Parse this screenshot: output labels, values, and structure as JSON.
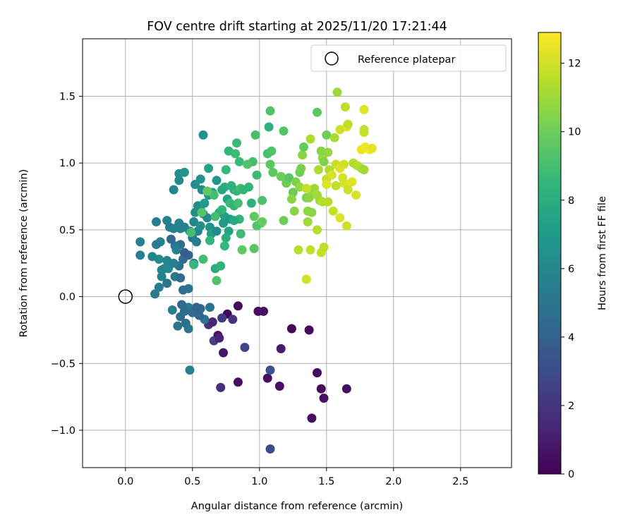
{
  "chart_data": {
    "type": "scatter",
    "title": "FOV centre drift starting at 2025/11/20 17:21:44",
    "xlabel": "Angular distance from reference (arcmin)",
    "ylabel": "Rotation from reference (arcmin)",
    "xlim": [
      -0.32,
      2.88
    ],
    "ylim": [
      -1.28,
      1.93
    ],
    "xticks": [
      0.0,
      0.5,
      1.0,
      1.5,
      2.0,
      2.5
    ],
    "xtick_labels": [
      "0.0",
      "0.5",
      "1.0",
      "1.5",
      "2.0",
      "2.5"
    ],
    "yticks": [
      -1.0,
      -0.5,
      0.0,
      0.5,
      1.0,
      1.5
    ],
    "ytick_labels": [
      "−1.0",
      "−0.5",
      "0.0",
      "0.5",
      "1.0",
      "1.5"
    ],
    "grid": true,
    "legend": {
      "position": "top-right",
      "entries": [
        "Reference platepar"
      ]
    },
    "reference_point": {
      "x": 0.0,
      "y": 0.0,
      "label": "Reference platepar"
    },
    "colorbar": {
      "label": "Hours from first FF file",
      "range": [
        0,
        12.9
      ],
      "ticks": [
        0,
        2,
        4,
        6,
        8,
        10,
        12
      ],
      "tick_labels": [
        "0",
        "2",
        "4",
        "6",
        "8",
        "10",
        "12"
      ],
      "colormap": [
        "#440154",
        "#482878",
        "#3e4989",
        "#31688e",
        "#26828e",
        "#1f9e89",
        "#35b779",
        "#6ece58",
        "#b5de2b",
        "#fde725"
      ]
    },
    "points": [
      [
        0.76,
        -0.13,
        0.3
      ],
      [
        0.84,
        -0.07,
        0.4
      ],
      [
        0.99,
        -0.11,
        0.5
      ],
      [
        1.03,
        -0.11,
        0.6
      ],
      [
        1.24,
        -0.24,
        0.3
      ],
      [
        1.37,
        -0.25,
        0.4
      ],
      [
        0.69,
        -0.29,
        0.6
      ],
      [
        0.73,
        -0.42,
        0.8
      ],
      [
        0.84,
        -0.64,
        0.5
      ],
      [
        1.06,
        -0.61,
        0.5
      ],
      [
        1.15,
        -0.67,
        0.6
      ],
      [
        1.43,
        -0.57,
        0.4
      ],
      [
        1.46,
        -0.69,
        0.3
      ],
      [
        1.48,
        -0.76,
        0.6
      ],
      [
        1.65,
        -0.69,
        0.5
      ],
      [
        1.39,
        -0.91,
        0.5
      ],
      [
        1.16,
        -0.39,
        1.0
      ],
      [
        1.08,
        -1.14,
        3.0
      ],
      [
        0.71,
        -0.68,
        1.7
      ],
      [
        0.89,
        -0.38,
        2.7
      ],
      [
        1.08,
        -0.55,
        3.3
      ],
      [
        0.66,
        -0.33,
        2.5
      ],
      [
        0.62,
        -0.21,
        2.0
      ],
      [
        0.72,
        -0.16,
        2.2
      ],
      [
        0.8,
        -0.17,
        2.0
      ],
      [
        0.65,
        -0.19,
        1.4
      ],
      [
        0.7,
        -0.31,
        1.3
      ],
      [
        0.56,
        -0.09,
        4.3
      ],
      [
        0.59,
        -0.17,
        4.8
      ],
      [
        0.63,
        -0.08,
        4.9
      ],
      [
        0.47,
        -0.08,
        5.2
      ],
      [
        0.5,
        -0.12,
        4.5
      ],
      [
        0.42,
        -0.06,
        4.4
      ],
      [
        0.44,
        -0.11,
        4.6
      ],
      [
        0.41,
        -0.15,
        4.6
      ],
      [
        0.45,
        -0.2,
        4.7
      ],
      [
        0.39,
        -0.22,
        4.9
      ],
      [
        0.47,
        -0.24,
        5.0
      ],
      [
        0.35,
        -0.1,
        5.5
      ],
      [
        0.48,
        -0.55,
        5.6
      ],
      [
        0.55,
        -0.14,
        4.2
      ],
      [
        0.53,
        -0.08,
        4.0
      ],
      [
        0.22,
        0.02,
        5.3
      ],
      [
        0.25,
        0.07,
        5.5
      ],
      [
        0.27,
        0.15,
        5.7
      ],
      [
        0.29,
        0.21,
        5.5
      ],
      [
        0.31,
        0.1,
        5.0
      ],
      [
        0.37,
        0.15,
        5.3
      ],
      [
        0.41,
        0.14,
        4.6
      ],
      [
        0.43,
        0.05,
        4.6
      ],
      [
        0.47,
        0.06,
        4.9
      ],
      [
        0.4,
        0.23,
        4.8
      ],
      [
        0.43,
        0.28,
        4.6
      ],
      [
        0.47,
        0.31,
        4.2
      ],
      [
        0.51,
        0.25,
        4.6
      ],
      [
        0.44,
        0.33,
        3.8
      ],
      [
        0.41,
        0.39,
        4.8
      ],
      [
        0.37,
        0.38,
        5.0
      ],
      [
        0.34,
        0.43,
        4.3
      ],
      [
        0.26,
        0.41,
        5.7
      ],
      [
        0.23,
        0.39,
        5.4
      ],
      [
        0.2,
        0.3,
        5.9
      ],
      [
        0.11,
        0.41,
        5.6
      ],
      [
        0.11,
        0.31,
        5.5
      ],
      [
        0.25,
        0.28,
        6.2
      ],
      [
        0.27,
        0.2,
        6.0
      ],
      [
        0.32,
        0.21,
        6.1
      ],
      [
        0.31,
        0.27,
        5.9
      ],
      [
        0.36,
        0.25,
        5.6
      ],
      [
        0.38,
        0.35,
        5.5
      ],
      [
        0.23,
        0.56,
        5.4
      ],
      [
        0.31,
        0.57,
        5.6
      ],
      [
        0.33,
        0.52,
        5.4
      ],
      [
        0.36,
        0.51,
        5.7
      ],
      [
        0.41,
        0.51,
        5.6
      ],
      [
        0.4,
        0.55,
        5.6
      ],
      [
        0.44,
        0.52,
        5.7
      ],
      [
        0.48,
        0.49,
        5.8
      ],
      [
        0.5,
        0.44,
        5.2
      ],
      [
        0.53,
        0.41,
        5.4
      ],
      [
        0.51,
        0.56,
        6.0
      ],
      [
        0.54,
        0.49,
        5.9
      ],
      [
        0.56,
        0.53,
        6.5
      ],
      [
        0.58,
        0.62,
        6.3
      ],
      [
        0.61,
        0.59,
        6.1
      ],
      [
        0.63,
        0.52,
        6.6
      ],
      [
        0.64,
        0.47,
        7.3
      ],
      [
        0.68,
        0.49,
        6.2
      ],
      [
        0.52,
        0.63,
        6.4
      ],
      [
        0.54,
        0.68,
        6.3
      ],
      [
        0.56,
        0.65,
        6.6
      ],
      [
        0.59,
        0.7,
        7.0
      ],
      [
        0.62,
        0.76,
        6.8
      ],
      [
        0.57,
        0.8,
        6.2
      ],
      [
        0.52,
        0.84,
        6.3
      ],
      [
        0.4,
        0.87,
        6.2
      ],
      [
        0.4,
        0.92,
        6.4
      ],
      [
        0.44,
        0.93,
        6.6
      ],
      [
        0.36,
        0.8,
        6.0
      ],
      [
        0.56,
        0.88,
        6.6
      ],
      [
        0.58,
        1.21,
        6.5
      ],
      [
        0.62,
        0.96,
        7.4
      ],
      [
        0.65,
        0.78,
        7.6
      ],
      [
        0.68,
        0.87,
        6.8
      ],
      [
        0.72,
        0.8,
        7.6
      ],
      [
        0.74,
        0.82,
        7.9
      ],
      [
        0.76,
        0.73,
        7.5
      ],
      [
        0.7,
        0.63,
        7.8
      ],
      [
        0.74,
        0.6,
        7.3
      ],
      [
        0.73,
        0.55,
        7.0
      ],
      [
        0.77,
        0.49,
        7.4
      ],
      [
        0.78,
        0.58,
        7.1
      ],
      [
        0.75,
        0.44,
        8.0
      ],
      [
        0.74,
        0.38,
        8.6
      ],
      [
        0.72,
        0.65,
        8.5
      ],
      [
        0.78,
        0.7,
        8.7
      ],
      [
        0.81,
        0.68,
        8.5
      ],
      [
        0.84,
        0.7,
        9.0
      ],
      [
        0.79,
        0.83,
        8.3
      ],
      [
        0.81,
        0.8,
        8.1
      ],
      [
        0.83,
        0.79,
        8.4
      ],
      [
        0.75,
        0.95,
        8.6
      ],
      [
        0.77,
        1.09,
        8.5
      ],
      [
        0.82,
        1.07,
        8.8
      ],
      [
        0.85,
        1.01,
        8.7
      ],
      [
        0.83,
        1.15,
        8.7
      ],
      [
        0.86,
        0.81,
        9.0
      ],
      [
        0.88,
        0.8,
        8.6
      ],
      [
        0.92,
        0.82,
        8.4
      ],
      [
        0.94,
        0.7,
        8.2
      ],
      [
        0.85,
        0.58,
        8.5
      ],
      [
        0.81,
        0.57,
        7.8
      ],
      [
        0.86,
        0.47,
        8.8
      ],
      [
        0.67,
        0.6,
        9.0
      ],
      [
        0.66,
        0.76,
        9.0
      ],
      [
        0.61,
        0.79,
        9.6
      ],
      [
        0.57,
        0.63,
        9.4
      ],
      [
        0.49,
        0.48,
        9.0
      ],
      [
        0.51,
        0.24,
        8.6
      ],
      [
        0.58,
        0.28,
        9.0
      ],
      [
        0.63,
        0.42,
        8.4
      ],
      [
        0.67,
        0.21,
        8.0
      ],
      [
        0.71,
        0.23,
        8.3
      ],
      [
        0.68,
        0.12,
        9.3
      ],
      [
        0.95,
        1.01,
        9.0
      ],
      [
        0.97,
        1.21,
        9.1
      ],
      [
        0.91,
        0.99,
        9.3
      ],
      [
        0.98,
        0.91,
        8.8
      ],
      [
        1.02,
        0.72,
        9.2
      ],
      [
        0.96,
        0.6,
        9.6
      ],
      [
        0.98,
        0.53,
        9.4
      ],
      [
        1.01,
        0.55,
        9.2
      ],
      [
        1.02,
        0.56,
        9.8
      ],
      [
        0.96,
        0.36,
        9.5
      ],
      [
        0.87,
        0.35,
        9.6
      ],
      [
        1.06,
        1.07,
        9.1
      ],
      [
        1.09,
        1.09,
        9.3
      ],
      [
        1.07,
        1.27,
        8.2
      ],
      [
        1.08,
        1.39,
        9.3
      ],
      [
        1.18,
        1.24,
        9.4
      ],
      [
        1.08,
        0.99,
        9.6
      ],
      [
        1.1,
        0.93,
        9.6
      ],
      [
        1.16,
        0.9,
        10.0
      ],
      [
        1.2,
        0.85,
        10.0
      ],
      [
        1.22,
        0.89,
        9.5
      ],
      [
        1.25,
        0.78,
        9.9
      ],
      [
        1.27,
        0.86,
        10.4
      ],
      [
        1.24,
        0.73,
        10.6
      ],
      [
        1.3,
        0.82,
        10.8
      ],
      [
        1.32,
        1.06,
        10.6
      ],
      [
        1.33,
        1.12,
        9.8
      ],
      [
        1.3,
        0.93,
        10.0
      ],
      [
        1.31,
        0.96,
        10.2
      ],
      [
        1.26,
        0.64,
        10.6
      ],
      [
        1.18,
        0.57,
        10.0
      ],
      [
        1.35,
        0.74,
        10.2
      ],
      [
        1.37,
        0.74,
        10.6
      ],
      [
        1.36,
        0.64,
        10.7
      ],
      [
        1.39,
        0.63,
        10.6
      ],
      [
        1.36,
        0.56,
        11.0
      ],
      [
        1.39,
        0.79,
        10.9
      ],
      [
        1.41,
        0.81,
        11.0
      ],
      [
        1.43,
        0.76,
        11.1
      ],
      [
        1.45,
        0.72,
        11.0
      ],
      [
        1.44,
        0.95,
        11.3
      ],
      [
        1.47,
        1.04,
        11.0
      ],
      [
        1.46,
        1.09,
        10.5
      ],
      [
        1.48,
        1.01,
        10.4
      ],
      [
        1.51,
        1.08,
        10.8
      ],
      [
        1.5,
        1.21,
        10.0
      ],
      [
        1.43,
        1.38,
        9.6
      ],
      [
        1.38,
        1.18,
        11.3
      ],
      [
        1.52,
        0.95,
        11.4
      ],
      [
        1.5,
        0.88,
        11.7
      ],
      [
        1.54,
        0.91,
        12.1
      ],
      [
        1.57,
        0.99,
        11.8
      ],
      [
        1.6,
        0.96,
        12.3
      ],
      [
        1.63,
        0.99,
        12.0
      ],
      [
        1.65,
        1.27,
        12.4
      ],
      [
        1.66,
        1.29,
        11.6
      ],
      [
        1.6,
        1.25,
        12.0
      ],
      [
        1.56,
        1.19,
        11.2
      ],
      [
        1.64,
        1.42,
        11.6
      ],
      [
        1.58,
        1.53,
        11.0
      ],
      [
        1.63,
        0.85,
        12.3
      ],
      [
        1.66,
        0.8,
        11.9
      ],
      [
        1.62,
        0.89,
        12.1
      ],
      [
        1.57,
        0.83,
        11.7
      ],
      [
        1.55,
        0.64,
        11.8
      ],
      [
        1.6,
        0.59,
        12.2
      ],
      [
        1.65,
        0.53,
        12.0
      ],
      [
        1.51,
        0.71,
        11.4
      ],
      [
        1.47,
        0.71,
        11.4
      ],
      [
        1.43,
        0.5,
        11.5
      ],
      [
        1.35,
        0.81,
        11.8
      ],
      [
        1.38,
        0.35,
        11.7
      ],
      [
        1.29,
        0.35,
        11.5
      ],
      [
        1.35,
        0.13,
        12.0
      ],
      [
        1.46,
        0.33,
        11.8
      ],
      [
        1.48,
        0.37,
        11.6
      ],
      [
        1.5,
        0.84,
        12.3
      ],
      [
        1.69,
        0.86,
        12.3
      ],
      [
        1.7,
        1.0,
        11.4
      ],
      [
        1.73,
        0.98,
        11.5
      ],
      [
        1.76,
        0.96,
        11.3
      ],
      [
        1.78,
        0.95,
        11.0
      ],
      [
        1.72,
        0.76,
        12.1
      ],
      [
        1.78,
        1.25,
        11.7
      ],
      [
        1.78,
        1.23,
        11.8
      ],
      [
        1.78,
        1.4,
        12.4
      ],
      [
        1.76,
        1.1,
        12.5
      ],
      [
        1.79,
        1.12,
        12.6
      ],
      [
        1.82,
        1.1,
        12.7
      ],
      [
        1.84,
        1.11,
        12.4
      ]
    ]
  }
}
